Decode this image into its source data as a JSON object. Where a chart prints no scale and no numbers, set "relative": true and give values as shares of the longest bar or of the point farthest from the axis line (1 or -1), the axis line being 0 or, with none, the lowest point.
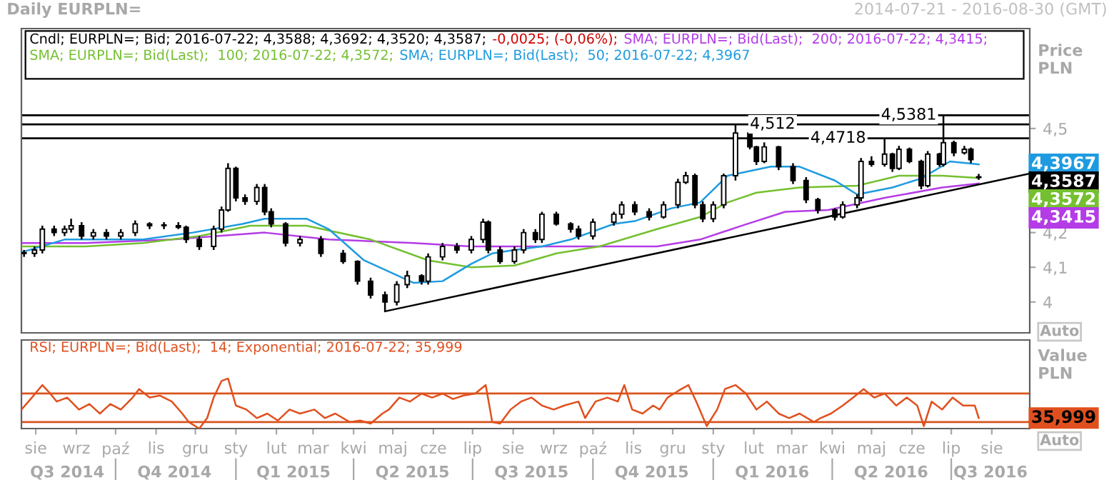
{
  "chart_data": [
    {
      "type": "candlestick",
      "title": "Daily EURPLN=",
      "subtitle": "2014-07-21 - 2016-08-30 (GMT)",
      "ylabel": "Price\nPLN",
      "legend": "top left",
      "tick_labels": "y",
      "xlim": [
        "2014-07-21",
        "2016-08-30"
      ],
      "ylim": [
        3.911,
        4.788
      ],
      "yticks": [
        {
          "value": 4,
          "label": "4"
        },
        {
          "value": 4.1,
          "label": "4,1"
        },
        {
          "value": 4.2,
          "label": "4,2"
        },
        {
          "value": 4.5,
          "label": "4,5"
        }
      ],
      "x": [
        "2014-07-23",
        "2014-07-31",
        "2014-08-06",
        "2014-08-15",
        "2014-08-23",
        "2014-08-28",
        "2014-09-05",
        "2014-09-14",
        "2014-09-24",
        "2014-10-05",
        "2014-10-16",
        "2014-10-27",
        "2014-11-07",
        "2014-11-18",
        "2014-11-24",
        "2014-12-04",
        "2014-12-15",
        "2014-12-21",
        "2014-12-26",
        "2015-01-01",
        "2015-01-08",
        "2015-01-17",
        "2015-01-23",
        "2015-01-28",
        "2015-02-08",
        "2015-02-19",
        "2015-03-07",
        "2015-03-24",
        "2015-04-04",
        "2015-04-14",
        "2015-04-25",
        "2015-05-04",
        "2015-05-12",
        "2015-05-23",
        "2015-05-28",
        "2015-06-08",
        "2015-06-19",
        "2015-06-30",
        "2015-07-09",
        "2015-07-13",
        "2015-07-22",
        "2015-08-02",
        "2015-08-09",
        "2015-08-18",
        "2015-08-23",
        "2015-09-03",
        "2015-09-14",
        "2015-09-20",
        "2015-10-01",
        "2015-10-17",
        "2015-10-23",
        "2015-11-02",
        "2015-11-13",
        "2015-11-24",
        "2015-12-05",
        "2015-12-11",
        "2015-12-18",
        "2015-12-24",
        "2016-01-01",
        "2016-01-09",
        "2016-01-18",
        "2016-01-29",
        "2016-02-03",
        "2016-02-09",
        "2016-02-20",
        "2016-03-02",
        "2016-03-12",
        "2016-03-21",
        "2016-04-03",
        "2016-04-09",
        "2016-04-20",
        "2016-04-23",
        "2016-05-01",
        "2016-05-11",
        "2016-05-17",
        "2016-05-22",
        "2016-05-30",
        "2016-06-08",
        "2016-06-13",
        "2016-06-22",
        "2016-06-25",
        "2016-07-03",
        "2016-07-11",
        "2016-07-16",
        "2016-07-22"
      ],
      "ohlc": [
        [
          4.14,
          4.15,
          4.13,
          4.14
        ],
        [
          4.14,
          4.16,
          4.13,
          4.15
        ],
        [
          4.15,
          4.22,
          4.14,
          4.21
        ],
        [
          4.21,
          4.22,
          4.19,
          4.2
        ],
        [
          4.2,
          4.22,
          4.19,
          4.21
        ],
        [
          4.21,
          4.24,
          4.2,
          4.22
        ],
        [
          4.22,
          4.23,
          4.18,
          4.19
        ],
        [
          4.19,
          4.21,
          4.18,
          4.2
        ],
        [
          4.2,
          4.21,
          4.18,
          4.19
        ],
        [
          4.19,
          4.21,
          4.18,
          4.2
        ],
        [
          4.2,
          4.235,
          4.19,
          4.225
        ],
        [
          4.225,
          4.23,
          4.21,
          4.22
        ],
        [
          4.22,
          4.23,
          4.21,
          4.22
        ],
        [
          4.22,
          4.23,
          4.21,
          4.215
        ],
        [
          4.215,
          4.22,
          4.17,
          4.18
        ],
        [
          4.18,
          4.19,
          4.15,
          4.16
        ],
        [
          4.16,
          4.22,
          4.15,
          4.21
        ],
        [
          4.21,
          4.275,
          4.2,
          4.265
        ],
        [
          4.265,
          4.4,
          4.26,
          4.385
        ],
        [
          4.385,
          4.39,
          4.29,
          4.3
        ],
        [
          4.3,
          4.31,
          4.28,
          4.29
        ],
        [
          4.29,
          4.34,
          4.28,
          4.33
        ],
        [
          4.33,
          4.34,
          4.25,
          4.26
        ],
        [
          4.26,
          4.27,
          4.215,
          4.225
        ],
        [
          4.225,
          4.23,
          4.16,
          4.17
        ],
        [
          4.17,
          4.19,
          4.16,
          4.18
        ],
        [
          4.18,
          4.19,
          4.13,
          4.14
        ],
        [
          4.14,
          4.15,
          4.11,
          4.117
        ],
        [
          4.117,
          4.12,
          4.05,
          4.06
        ],
        [
          4.06,
          4.07,
          4.01,
          4.02
        ],
        [
          4.02,
          4.03,
          3.975,
          4.0
        ],
        [
          4.0,
          4.06,
          3.99,
          4.05
        ],
        [
          4.05,
          4.09,
          4.04,
          4.075
        ],
        [
          4.075,
          4.08,
          4.05,
          4.06
        ],
        [
          4.06,
          4.14,
          4.05,
          4.13
        ],
        [
          4.13,
          4.17,
          4.12,
          4.16
        ],
        [
          4.16,
          4.17,
          4.14,
          4.15
        ],
        [
          4.15,
          4.19,
          4.14,
          4.18
        ],
        [
          4.18,
          4.24,
          4.17,
          4.23
        ],
        [
          4.23,
          4.235,
          4.14,
          4.15
        ],
        [
          4.15,
          4.16,
          4.11,
          4.117
        ],
        [
          4.117,
          4.16,
          4.11,
          4.15
        ],
        [
          4.15,
          4.21,
          4.14,
          4.2
        ],
        [
          4.2,
          4.21,
          4.17,
          4.18
        ],
        [
          4.18,
          4.26,
          4.17,
          4.253
        ],
        [
          4.253,
          4.26,
          4.22,
          4.225
        ],
        [
          4.225,
          4.23,
          4.2,
          4.21
        ],
        [
          4.21,
          4.22,
          4.18,
          4.19
        ],
        [
          4.19,
          4.24,
          4.18,
          4.23
        ],
        [
          4.23,
          4.26,
          4.22,
          4.253
        ],
        [
          4.253,
          4.29,
          4.24,
          4.28
        ],
        [
          4.28,
          4.29,
          4.25,
          4.26
        ],
        [
          4.26,
          4.27,
          4.235,
          4.245
        ],
        [
          4.245,
          4.29,
          4.24,
          4.28
        ],
        [
          4.28,
          4.355,
          4.27,
          4.345
        ],
        [
          4.345,
          4.375,
          4.34,
          4.364
        ],
        [
          4.364,
          4.37,
          4.27,
          4.28
        ],
        [
          4.28,
          4.29,
          4.23,
          4.24
        ],
        [
          4.24,
          4.29,
          4.23,
          4.28
        ],
        [
          4.28,
          4.37,
          4.27,
          4.364
        ],
        [
          4.364,
          4.512,
          4.35,
          4.487
        ],
        [
          4.487,
          4.49,
          4.44,
          4.447
        ],
        [
          4.447,
          4.45,
          4.395,
          4.405
        ],
        [
          4.405,
          4.46,
          4.4,
          4.447
        ],
        [
          4.447,
          4.45,
          4.38,
          4.39
        ],
        [
          4.39,
          4.4,
          4.34,
          4.35
        ],
        [
          4.35,
          4.36,
          4.285,
          4.295
        ],
        [
          4.295,
          4.3,
          4.255,
          4.265
        ],
        [
          4.265,
          4.27,
          4.235,
          4.245
        ],
        [
          4.245,
          4.29,
          4.24,
          4.28
        ],
        [
          4.28,
          4.31,
          4.27,
          4.3
        ],
        [
          4.3,
          4.415,
          4.29,
          4.405
        ],
        [
          4.405,
          4.42,
          4.39,
          4.397
        ],
        [
          4.397,
          4.4718,
          4.39,
          4.426
        ],
        [
          4.426,
          4.43,
          4.375,
          4.385
        ],
        [
          4.385,
          4.45,
          4.38,
          4.44
        ],
        [
          4.44,
          4.445,
          4.4,
          4.405
        ],
        [
          4.405,
          4.41,
          4.325,
          4.335
        ],
        [
          4.335,
          4.435,
          4.33,
          4.426
        ],
        [
          4.426,
          4.43,
          4.39,
          4.397
        ],
        [
          4.397,
          4.5381,
          4.39,
          4.459
        ],
        [
          4.459,
          4.465,
          4.42,
          4.43
        ],
        [
          4.43,
          4.45,
          4.425,
          4.44
        ],
        [
          4.44,
          4.445,
          4.4,
          4.41
        ],
        [
          4.3588,
          4.3692,
          4.352,
          4.3587
        ]
      ],
      "series": [
        {
          "type": "line",
          "name": "SMA; EURPLN=; Bid(Last);  200; 2016-07-22; 4,3415;",
          "color": "#b43ce6",
          "x": [
            "2014-07-21",
            "2014-09-08",
            "2014-11-13",
            "2015-01-23",
            "2015-03-13",
            "2015-05-17",
            "2015-06-30",
            "2015-08-13",
            "2015-09-14",
            "2015-10-06",
            "2015-11-19",
            "2015-12-22",
            "2016-01-23",
            "2016-02-25",
            "2016-03-29",
            "2016-05-11",
            "2016-06-24",
            "2016-07-22"
          ],
          "values": [
            4.17,
            4.17,
            4.18,
            4.2,
            4.18,
            4.17,
            4.16,
            4.16,
            4.16,
            4.16,
            4.16,
            4.18,
            4.22,
            4.26,
            4.265,
            4.3,
            4.33,
            4.3415
          ]
        },
        {
          "type": "line",
          "name": "SMA; EURPLN=; Bid(Last);  100; 2016-07-22; 4,3572;",
          "color": "#74c030",
          "x": [
            "2014-07-21",
            "2014-09-08",
            "2014-10-22",
            "2014-12-04",
            "2015-01-12",
            "2015-02-24",
            "2015-04-14",
            "2015-05-28",
            "2015-06-30",
            "2015-08-02",
            "2015-09-03",
            "2015-10-06",
            "2015-11-19",
            "2015-12-22",
            "2016-01-12",
            "2016-02-03",
            "2016-03-07",
            "2016-04-20",
            "2016-05-22",
            "2016-06-24",
            "2016-07-22"
          ],
          "values": [
            4.16,
            4.16,
            4.17,
            4.19,
            4.22,
            4.22,
            4.18,
            4.12,
            4.1,
            4.105,
            4.14,
            4.16,
            4.21,
            4.245,
            4.287,
            4.315,
            4.33,
            4.335,
            4.364,
            4.364,
            4.3572
          ]
        },
        {
          "type": "line",
          "name": "SMA; EURPLN=; Bid(Last);  50; 2016-07-22; 4,3967",
          "color": "#1e9be0",
          "x": [
            "2014-07-21",
            "2014-08-23",
            "2014-10-22",
            "2014-11-29",
            "2015-01-06",
            "2015-01-23",
            "2015-02-24",
            "2015-03-13",
            "2015-04-09",
            "2015-05-17",
            "2015-06-08",
            "2015-06-30",
            "2015-07-16",
            "2015-08-02",
            "2015-08-23",
            "2015-09-14",
            "2015-10-17",
            "2015-11-02",
            "2015-11-30",
            "2015-12-22",
            "2016-01-12",
            "2016-02-14",
            "2016-03-07",
            "2016-04-03",
            "2016-04-20",
            "2016-05-17",
            "2016-06-08",
            "2016-06-30",
            "2016-07-22"
          ],
          "values": [
            4.143,
            4.18,
            4.18,
            4.2,
            4.225,
            4.24,
            4.24,
            4.21,
            4.12,
            4.055,
            4.06,
            4.11,
            4.14,
            4.15,
            4.16,
            4.18,
            4.225,
            4.233,
            4.27,
            4.287,
            4.364,
            4.39,
            4.39,
            4.35,
            4.31,
            4.33,
            4.356,
            4.405,
            4.3967
          ]
        },
        {
          "type": "line",
          "color": "#000000",
          "x": [
            "2015-04-25",
            "2016-08-30"
          ],
          "values": [
            3.973,
            4.37
          ]
        }
      ],
      "ref_lines": [
        {
          "axis": "y",
          "value": 4.5381,
          "label": "4,5381",
          "color": "#000000"
        },
        {
          "axis": "y",
          "value": 4.512,
          "label": "4,512",
          "color": "#000000"
        },
        {
          "axis": "y",
          "value": 4.4718,
          "label": "4,4718",
          "color": "#000000"
        }
      ],
      "annotations": [
        "Cndl; EURPLN=; Bid; 2016-07-22; 4,3588; 4,3692; 4,3520; 4,3587;",
        "-0,0025; (-0,06%);",
        "4,3967",
        "4,3587",
        "4,3572",
        "4,3415",
        "Auto"
      ]
    },
    {
      "type": "line",
      "relative": true,
      "ylabel": "Value\nPLN",
      "legend": "top left",
      "tick_labels": "x",
      "xlim": [
        "2014-07-21",
        "2016-08-30"
      ],
      "xticks": [
        {
          "value": "2014-08-01",
          "label": "sie"
        },
        {
          "value": "2014-09-01",
          "label": "wrz"
        },
        {
          "value": "2014-10-01",
          "label": "paź"
        },
        {
          "value": "2014-11-01",
          "label": "lis"
        },
        {
          "value": "2014-12-01",
          "label": "gru"
        },
        {
          "value": "2015-01-01",
          "label": "sty"
        },
        {
          "value": "2015-02-01",
          "label": "lut"
        },
        {
          "value": "2015-03-01",
          "label": "mar"
        },
        {
          "value": "2015-04-01",
          "label": "kwi"
        },
        {
          "value": "2015-05-01",
          "label": "maj"
        },
        {
          "value": "2015-06-01",
          "label": "cze"
        },
        {
          "value": "2015-07-01",
          "label": "lip"
        },
        {
          "value": "2015-08-01",
          "label": "sie"
        },
        {
          "value": "2015-09-01",
          "label": "wrz"
        },
        {
          "value": "2015-10-01",
          "label": "paź"
        },
        {
          "value": "2015-11-01",
          "label": "lis"
        },
        {
          "value": "2015-12-01",
          "label": "gru"
        },
        {
          "value": "2016-01-01",
          "label": "sty"
        },
        {
          "value": "2016-02-01",
          "label": "lut"
        },
        {
          "value": "2016-03-01",
          "label": "mar"
        },
        {
          "value": "2016-04-01",
          "label": "kwi"
        },
        {
          "value": "2016-05-01",
          "label": "maj"
        },
        {
          "value": "2016-06-01",
          "label": "cze"
        },
        {
          "value": "2016-07-01",
          "label": "lip"
        },
        {
          "value": "2016-08-01",
          "label": "sie"
        }
      ],
      "x2lim": [
        "2014-07-21",
        "2016-08-30"
      ],
      "x2ticks": [
        {
          "value": "2014-08-25",
          "label": "Q3 2014"
        },
        {
          "value": "2014-10-01",
          "label": null
        },
        {
          "value": "2014-11-15",
          "label": "Q4 2014"
        },
        {
          "value": "2015-01-01",
          "label": null
        },
        {
          "value": "2015-02-14",
          "label": "Q1 2015"
        },
        {
          "value": "2015-04-01",
          "label": null
        },
        {
          "value": "2015-05-16",
          "label": "Q2 2015"
        },
        {
          "value": "2015-07-01",
          "label": null
        },
        {
          "value": "2015-08-15",
          "label": "Q3 2015"
        },
        {
          "value": "2015-10-01",
          "label": null
        },
        {
          "value": "2015-11-15",
          "label": "Q4 2015"
        },
        {
          "value": "2016-01-01",
          "label": null
        },
        {
          "value": "2016-02-15",
          "label": "Q1 2016"
        },
        {
          "value": "2016-04-01",
          "label": null
        },
        {
          "value": "2016-05-16",
          "label": "Q2 2016"
        },
        {
          "value": "2016-07-01",
          "label": null
        },
        {
          "value": "2016-07-31",
          "label": "Q3 2016"
        }
      ],
      "series": [
        {
          "name": "RSI; EURPLN=; Bid(Last);  14; Exponential; 2016-07-22; 35,999",
          "color": "#e0501e",
          "x": [
            "2014-07-21",
            "2014-07-29",
            "2014-08-06",
            "2014-08-12",
            "2014-08-17",
            "2014-08-25",
            "2014-09-03",
            "2014-09-11",
            "2014-09-19",
            "2014-09-27",
            "2014-10-05",
            "2014-10-14",
            "2014-10-19",
            "2014-10-27",
            "2014-11-04",
            "2014-11-13",
            "2014-11-21",
            "2014-11-26",
            "2014-12-04",
            "2014-12-10",
            "2014-12-15",
            "2014-12-21",
            "2014-12-26",
            "2015-01-01",
            "2015-01-09",
            "2015-01-17",
            "2015-01-25",
            "2015-02-02",
            "2015-02-11",
            "2015-02-19",
            "2015-03-02",
            "2015-03-10",
            "2015-03-18",
            "2015-03-29",
            "2015-04-06",
            "2015-04-14",
            "2015-04-23",
            "2015-04-28",
            "2015-05-06",
            "2015-05-14",
            "2015-05-23",
            "2015-05-31",
            "2015-06-08",
            "2015-06-16",
            "2015-06-24",
            "2015-07-03",
            "2015-07-11",
            "2015-07-16",
            "2015-07-22",
            "2015-07-30",
            "2015-08-07",
            "2015-08-15",
            "2015-08-23",
            "2015-09-01",
            "2015-09-09",
            "2015-09-20",
            "2015-09-25",
            "2015-10-03",
            "2015-10-12",
            "2015-10-20",
            "2015-10-25",
            "2015-10-31",
            "2015-11-08",
            "2015-11-16",
            "2015-11-21",
            "2015-11-27",
            "2015-12-05",
            "2015-12-13",
            "2015-12-19",
            "2015-12-27",
            "2016-01-04",
            "2016-01-10",
            "2016-01-18",
            "2016-01-26",
            "2016-02-03",
            "2016-02-11",
            "2016-02-20",
            "2016-02-28",
            "2016-03-07",
            "2016-03-18",
            "2016-03-23",
            "2016-03-31",
            "2016-04-09",
            "2016-04-17",
            "2016-04-25",
            "2016-05-03",
            "2016-05-11",
            "2016-05-20",
            "2016-05-28",
            "2016-06-05",
            "2016-06-10",
            "2016-06-16",
            "2016-06-24",
            "2016-07-02",
            "2016-07-10",
            "2016-07-19",
            "2016-07-22"
          ],
          "values": [
            0.38,
            0.62,
            0.87,
            0.7,
            0.54,
            0.62,
            0.38,
            0.49,
            0.3,
            0.49,
            0.38,
            0.62,
            0.79,
            0.62,
            0.66,
            0.54,
            0.3,
            0.13,
            0,
            0.21,
            0.62,
            0.95,
            1,
            0.46,
            0.38,
            0.21,
            0.3,
            0.16,
            0.38,
            0.3,
            0.38,
            0.21,
            0.3,
            0.13,
            0.16,
            0.1,
            0.3,
            0.38,
            0.62,
            0.54,
            0.7,
            0.62,
            0.7,
            0.59,
            0.66,
            0.7,
            0.87,
            0.13,
            0.1,
            0.38,
            0.54,
            0.62,
            0.46,
            0.38,
            0.46,
            0.54,
            0.21,
            0.54,
            0.62,
            0.54,
            0.87,
            0.38,
            0.3,
            0.46,
            0.38,
            0.62,
            0.75,
            0.87,
            0.54,
            0.05,
            0.38,
            0.79,
            0.87,
            0.7,
            0.38,
            0.54,
            0.3,
            0.21,
            0.3,
            0.13,
            0.21,
            0.3,
            0.46,
            0.62,
            0.79,
            0.62,
            0.7,
            0.46,
            0.62,
            0.46,
            0.05,
            0.54,
            0.38,
            0.62,
            0.46,
            0.46,
            0.21
          ]
        }
      ],
      "ref_lines": [
        {
          "axis": "y",
          "value": 0.7,
          "color": "#d9541e"
        },
        {
          "axis": "y",
          "value": 0.13,
          "color": "#d9541e"
        }
      ],
      "annotations": [
        "35,999",
        "Auto"
      ]
    }
  ]
}
